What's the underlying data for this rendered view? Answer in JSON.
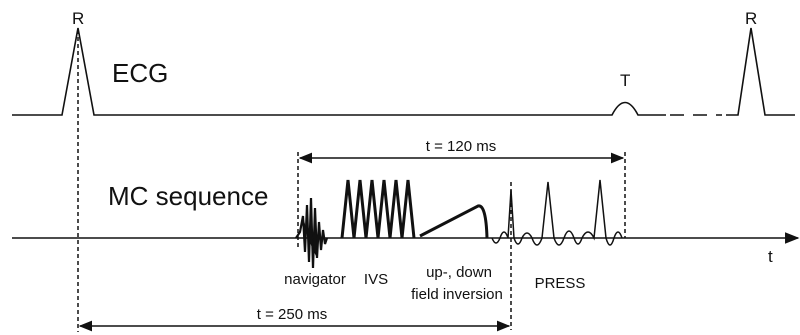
{
  "ecg": {
    "label": "ECG",
    "r_wave_label": "R",
    "r_wave_label_2": "R",
    "t_wave_label": "T"
  },
  "sequence": {
    "label": "MC sequence",
    "time_axis_label": "t",
    "components": {
      "navigator": "navigator",
      "ivs": "IVS",
      "inversion_line1": "up-, down",
      "inversion_line2": "field inversion",
      "press": "PRESS"
    }
  },
  "timing": {
    "sequence_duration": "t = 120 ms",
    "trigger_delay": "t = 250 ms"
  }
}
